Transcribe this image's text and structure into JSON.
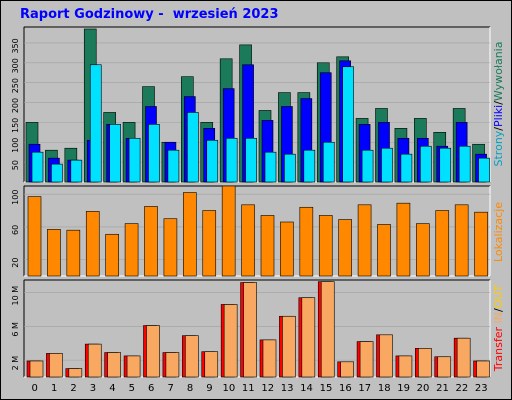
{
  "title": "Raport Godzinowy -  wrzesień 2023",
  "colors": {
    "wizyty": "#1a7a5a",
    "pliki": "#0000ff",
    "strony": "#00e0ff",
    "transfer_out": "#ff0000",
    "transfer_in": "#f8a860",
    "lokalizacje": "#ff8800"
  },
  "legend": {
    "top": [
      {
        "text": "Strony",
        "color": "#00a0c0"
      },
      {
        "text": "/",
        "color": "#000000"
      },
      {
        "text": "Pliki",
        "color": "#0000ff"
      },
      {
        "text": "/",
        "color": "#000000"
      },
      {
        "text": "Wywołania",
        "color": "#1a7a5a"
      }
    ],
    "middle": {
      "text": "Lokalizacje",
      "color": "#ff8800"
    },
    "bottom": [
      {
        "text": "Transfer",
        "color": "#ff0000"
      },
      {
        "text": " IN",
        "color": "#f8a860"
      },
      {
        "text": "/",
        "color": "#000000"
      },
      {
        "text": "OUT",
        "color": "#ffcc00"
      }
    ]
  },
  "chart_data": [
    {
      "type": "bar",
      "panel": "top",
      "categories": [
        "0",
        "1",
        "2",
        "3",
        "4",
        "5",
        "6",
        "7",
        "8",
        "9",
        "10",
        "11",
        "12",
        "13",
        "14",
        "15",
        "16",
        "17",
        "18",
        "19",
        "20",
        "21",
        "22",
        "23"
      ],
      "yticks": [
        "50",
        "100",
        "150",
        "200",
        "250",
        "300",
        "350"
      ],
      "ylim": [
        0,
        390
      ],
      "series": [
        {
          "name": "Wywołania",
          "values": [
            150,
            80,
            85,
            385,
            175,
            150,
            240,
            100,
            265,
            150,
            310,
            345,
            180,
            225,
            225,
            300,
            315,
            160,
            185,
            135,
            160,
            125,
            185,
            95
          ]
        },
        {
          "name": "Pliki",
          "values": [
            95,
            60,
            55,
            105,
            145,
            110,
            190,
            100,
            215,
            135,
            235,
            295,
            155,
            190,
            210,
            275,
            305,
            145,
            150,
            110,
            110,
            90,
            150,
            70
          ]
        },
        {
          "name": "Strony",
          "values": [
            75,
            45,
            55,
            295,
            145,
            110,
            145,
            80,
            175,
            105,
            110,
            110,
            75,
            70,
            80,
            100,
            290,
            80,
            85,
            70,
            90,
            85,
            90,
            60
          ]
        }
      ]
    },
    {
      "type": "bar",
      "panel": "middle",
      "categories": [
        "0",
        "1",
        "2",
        "3",
        "4",
        "5",
        "6",
        "7",
        "8",
        "9",
        "10",
        "11",
        "12",
        "13",
        "14",
        "15",
        "16",
        "17",
        "18",
        "19",
        "20",
        "21",
        "22",
        "23"
      ],
      "yticks": [
        "20",
        "60",
        "100"
      ],
      "ylim": [
        0,
        110
      ],
      "series": [
        {
          "name": "Lokalizacje",
          "values": [
            97,
            57,
            56,
            79,
            51,
            64,
            85,
            70,
            102,
            80,
            110,
            87,
            74,
            66,
            84,
            74,
            69,
            87,
            63,
            89,
            64,
            80,
            87,
            78
          ]
        }
      ]
    },
    {
      "type": "bar",
      "panel": "bottom",
      "categories": [
        "0",
        "1",
        "2",
        "3",
        "4",
        "5",
        "6",
        "7",
        "8",
        "9",
        "10",
        "11",
        "12",
        "13",
        "14",
        "15",
        "16",
        "17",
        "18",
        "19",
        "20",
        "21",
        "22",
        "23"
      ],
      "yticks": [
        "2 M",
        "6 M",
        "10 M"
      ],
      "ylim": [
        0,
        11.5
      ],
      "series": [
        {
          "name": "OUT",
          "values": [
            1.9,
            2.8,
            1.0,
            3.9,
            2.9,
            2.5,
            6.1,
            2.9,
            4.9,
            3.0,
            8.6,
            11.2,
            4.4,
            7.2,
            9.4,
            11.3,
            1.8,
            4.2,
            5.0,
            2.5,
            3.4,
            2.4,
            4.6,
            1.9
          ]
        },
        {
          "name": "IN",
          "values": [
            1.9,
            2.8,
            1.0,
            3.9,
            2.9,
            2.5,
            6.1,
            2.9,
            4.9,
            3.0,
            8.6,
            11.2,
            4.4,
            7.2,
            9.4,
            11.3,
            1.8,
            4.2,
            5.0,
            2.5,
            3.4,
            2.4,
            4.6,
            1.9
          ]
        }
      ]
    }
  ]
}
